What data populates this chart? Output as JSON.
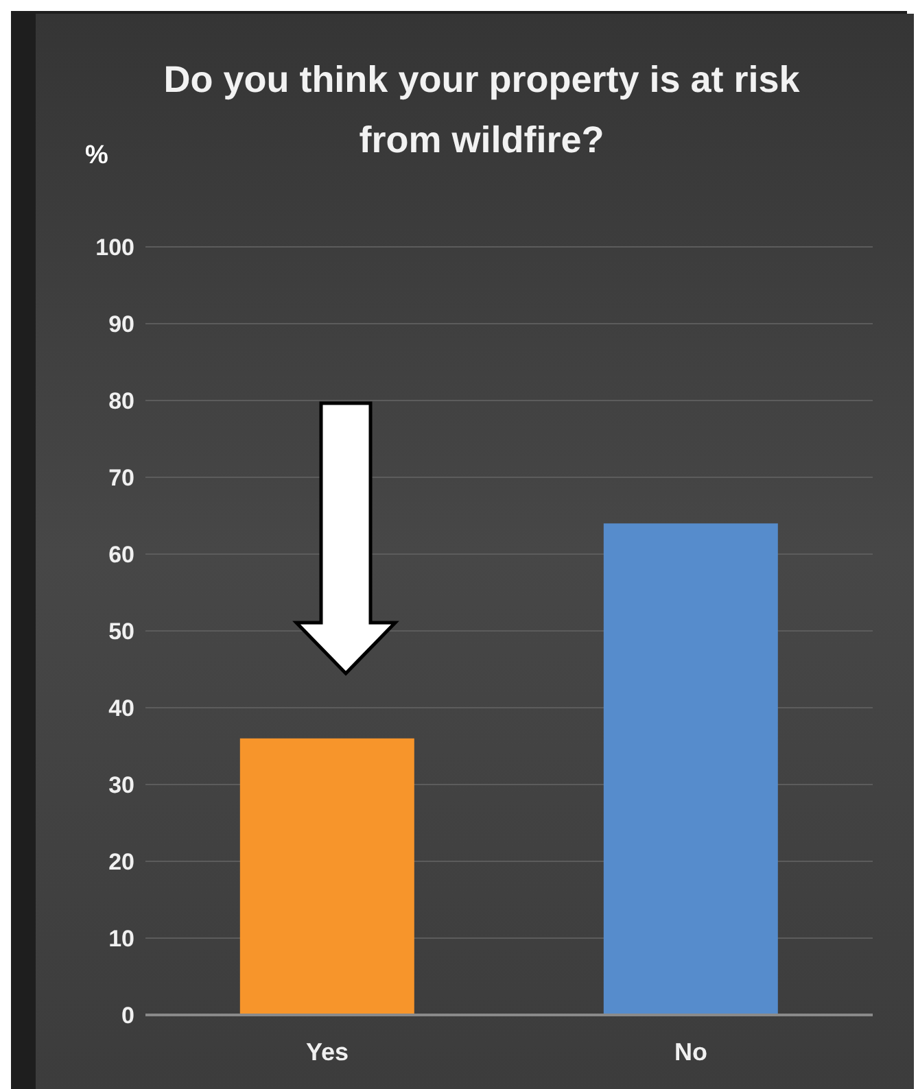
{
  "chart_data": {
    "type": "bar",
    "title": "Do you think your property is at risk from wildfire?",
    "ylabel": "%",
    "categories": [
      "Yes",
      "No"
    ],
    "values": [
      36,
      64
    ],
    "colors": [
      "#f7952b",
      "#568ccc"
    ],
    "ylim": [
      0,
      100
    ],
    "yticks": [
      0,
      10,
      20,
      30,
      40,
      50,
      60,
      70,
      80,
      90,
      100
    ],
    "grid": "y"
  }
}
